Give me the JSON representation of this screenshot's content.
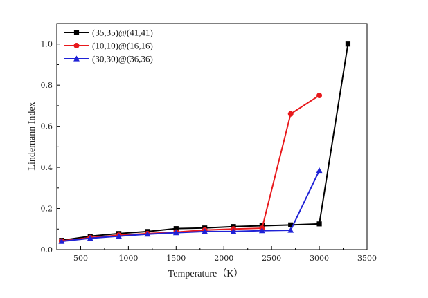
{
  "chart_data": {
    "type": "line",
    "xlabel": "Temperature（K）",
    "ylabel": "Lindemann Index",
    "xlim": [
      250,
      3500
    ],
    "ylim": [
      0,
      1.1
    ],
    "xticks": [
      500,
      1000,
      1500,
      2000,
      2500,
      3000,
      3500
    ],
    "yticks": [
      0.0,
      0.2,
      0.4,
      0.6,
      0.8,
      1.0
    ],
    "xtick_labels": [
      "500",
      "1000",
      "1500",
      "2000",
      "2500",
      "3000",
      "3500"
    ],
    "ytick_labels": [
      "0.0",
      "0.2",
      "0.4",
      "0.6",
      "0.8",
      "1.0"
    ],
    "grid": false,
    "legend_position": "top-left",
    "series": [
      {
        "name": "(35,35)@(41,41)",
        "color": "#000000",
        "marker": "square",
        "x": [
          300,
          600,
          900,
          1200,
          1500,
          1800,
          2100,
          2400,
          2700,
          3000,
          3300
        ],
        "y": [
          0.045,
          0.065,
          0.078,
          0.088,
          0.102,
          0.105,
          0.112,
          0.116,
          0.12,
          0.125,
          1.0
        ]
      },
      {
        "name": "(10,10)@(16,16)",
        "color": "#e8191c",
        "marker": "circle",
        "x": [
          300,
          600,
          900,
          1200,
          1500,
          1800,
          2100,
          2400,
          2700,
          3000
        ],
        "y": [
          0.042,
          0.058,
          0.07,
          0.078,
          0.085,
          0.095,
          0.1,
          0.104,
          0.66,
          0.75
        ]
      },
      {
        "name": "(30,30)@(36,36)",
        "color": "#1f22d6",
        "marker": "triangle",
        "x": [
          300,
          600,
          900,
          1200,
          1500,
          1800,
          2100,
          2400,
          2700,
          3000
        ],
        "y": [
          0.04,
          0.055,
          0.065,
          0.075,
          0.082,
          0.088,
          0.088,
          0.092,
          0.094,
          0.385
        ]
      }
    ]
  }
}
